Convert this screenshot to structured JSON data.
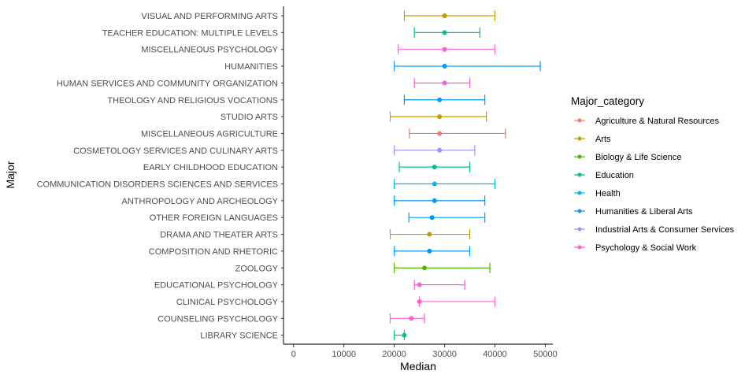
{
  "chart_data": {
    "type": "errorbar",
    "xlabel": "Median",
    "ylabel": "Major",
    "xlim": [
      -2000,
      51500
    ],
    "x_ticks": [
      0,
      10000,
      20000,
      30000,
      40000,
      50000
    ],
    "grid": false,
    "legend": {
      "title": "Major_category",
      "position": "right",
      "entries": [
        {
          "name": "Agriculture & Natural Resources",
          "color": "#F8766D"
        },
        {
          "name": "Arts",
          "color": "#C49A00"
        },
        {
          "name": "Biology & Life Science",
          "color": "#53B400"
        },
        {
          "name": "Education",
          "color": "#00C094"
        },
        {
          "name": "Health",
          "color": "#00B6EB"
        },
        {
          "name": "Humanities & Liberal Arts",
          "color": "#0098FF"
        },
        {
          "name": "Industrial Arts & Consumer Services",
          "color": "#A58AFF"
        },
        {
          "name": "Psychology & Social Work",
          "color": "#FB61D7"
        }
      ]
    },
    "points": [
      {
        "major": "VISUAL AND PERFORMING ARTS",
        "category": "Arts",
        "median": 30000,
        "low": 22000,
        "high": 40000
      },
      {
        "major": "TEACHER EDUCATION: MULTIPLE LEVELS",
        "category": "Education",
        "median": 30000,
        "low": 24000,
        "high": 37000
      },
      {
        "major": "MISCELLANEOUS PSYCHOLOGY",
        "category": "Psychology & Social Work",
        "median": 30000,
        "low": 20800,
        "high": 40000
      },
      {
        "major": "HUMANITIES",
        "category": "Humanities & Liberal Arts",
        "median": 30000,
        "low": 20000,
        "high": 49000
      },
      {
        "major": "HUMAN SERVICES AND COMMUNITY ORGANIZATION",
        "category": "Psychology & Social Work",
        "median": 30000,
        "low": 24000,
        "high": 35000
      },
      {
        "major": "THEOLOGY AND RELIGIOUS VOCATIONS",
        "category": "Humanities & Liberal Arts",
        "median": 29000,
        "low": 22000,
        "high": 38000
      },
      {
        "major": "STUDIO ARTS",
        "category": "Arts",
        "median": 29000,
        "low": 19200,
        "high": 38300
      },
      {
        "major": "MISCELLANEOUS AGRICULTURE",
        "category": "Agriculture & Natural Resources",
        "median": 29000,
        "low": 23000,
        "high": 42100
      },
      {
        "major": "COSMETOLOGY SERVICES AND CULINARY ARTS",
        "category": "Industrial Arts & Consumer Services",
        "median": 29000,
        "low": 20000,
        "high": 36000
      },
      {
        "major": "EARLY CHILDHOOD EDUCATION",
        "category": "Education",
        "median": 28000,
        "low": 21000,
        "high": 35000
      },
      {
        "major": "COMMUNICATION DISORDERS SCIENCES AND SERVICES",
        "category": "Health",
        "median": 28000,
        "low": 20000,
        "high": 40000
      },
      {
        "major": "ANTHROPOLOGY AND ARCHEOLOGY",
        "category": "Humanities & Liberal Arts",
        "median": 28000,
        "low": 20000,
        "high": 38000
      },
      {
        "major": "OTHER FOREIGN LANGUAGES",
        "category": "Humanities & Liberal Arts",
        "median": 27500,
        "low": 22900,
        "high": 38000
      },
      {
        "major": "DRAMA AND THEATER ARTS",
        "category": "Arts",
        "median": 27000,
        "low": 19200,
        "high": 35000
      },
      {
        "major": "COMPOSITION AND RHETORIC",
        "category": "Humanities & Liberal Arts",
        "median": 27000,
        "low": 20000,
        "high": 35000
      },
      {
        "major": "ZOOLOGY",
        "category": "Biology & Life Science",
        "median": 26000,
        "low": 20000,
        "high": 39000
      },
      {
        "major": "EDUCATIONAL PSYCHOLOGY",
        "category": "Psychology & Social Work",
        "median": 25000,
        "low": 24000,
        "high": 34000
      },
      {
        "major": "CLINICAL PSYCHOLOGY",
        "category": "Psychology & Social Work",
        "median": 25000,
        "low": 25000,
        "high": 40000
      },
      {
        "major": "COUNSELING PSYCHOLOGY",
        "category": "Psychology & Social Work",
        "median": 23400,
        "low": 19200,
        "high": 26000
      },
      {
        "major": "LIBRARY SCIENCE",
        "category": "Education",
        "median": 22000,
        "low": 20000,
        "high": 22000
      }
    ]
  }
}
